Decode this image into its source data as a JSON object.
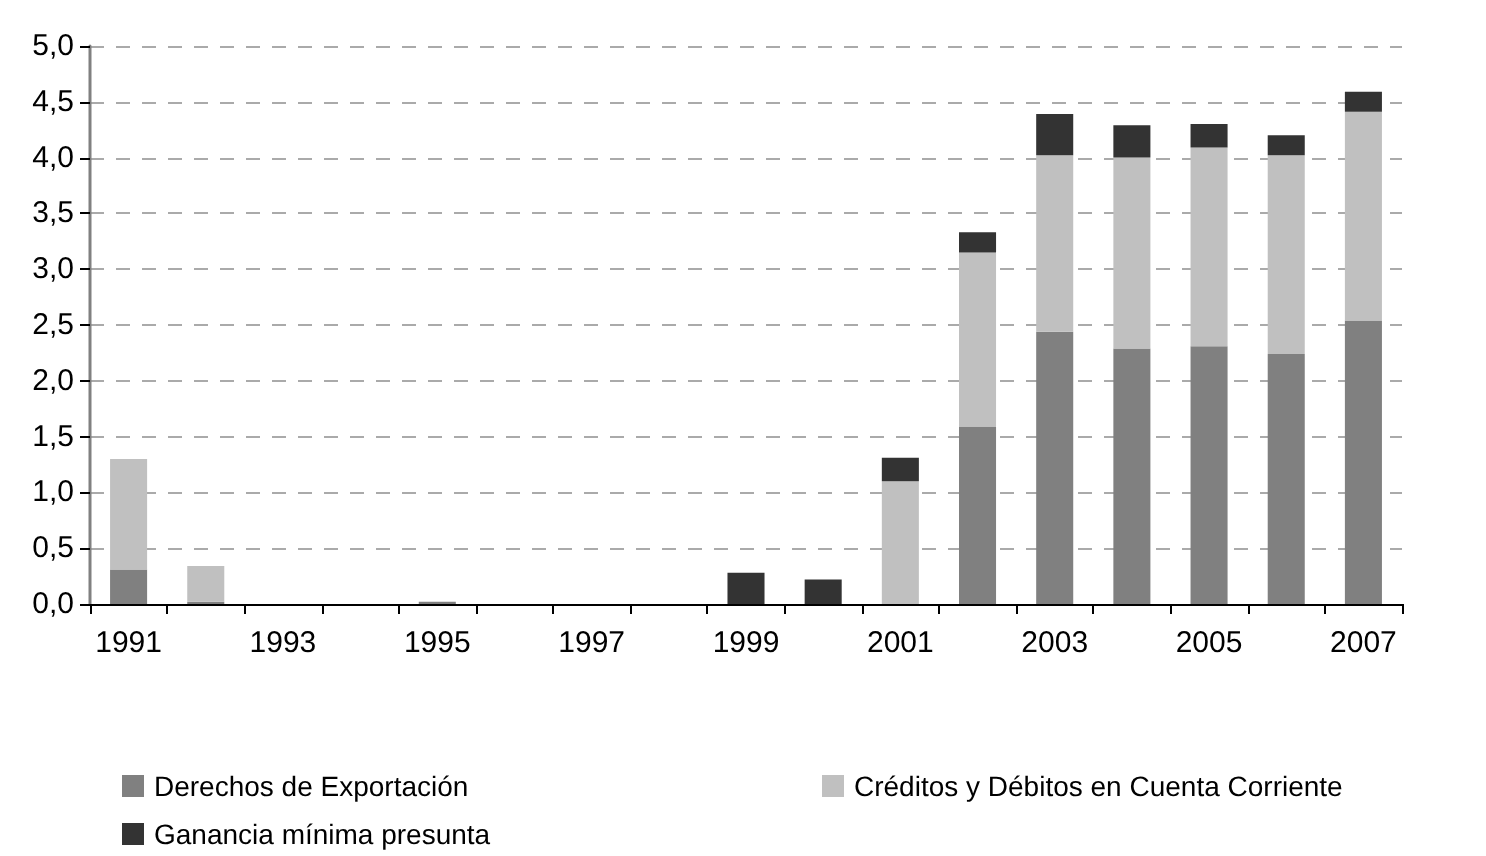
{
  "chart_data": {
    "type": "bar",
    "stacked": true,
    "categories": [
      "1991",
      null,
      "1993",
      null,
      "1995",
      null,
      "1997",
      null,
      "1999",
      null,
      "2001",
      null,
      "2003",
      null,
      "2005",
      null,
      "2007"
    ],
    "series": [
      {
        "name": "Derechos de Exportación",
        "color": "#808080",
        "values": [
          0.31,
          0.02,
          0,
          0,
          0.02,
          0,
          0,
          0,
          0,
          0,
          0,
          1.59,
          2.44,
          2.29,
          2.31,
          2.24,
          2.54
        ]
      },
      {
        "name": "Créditos y Débitos en Cuenta Corriente",
        "color": "#c0c0c0",
        "values": [
          0.99,
          0.32,
          0,
          0,
          0,
          0,
          0,
          0,
          0,
          0,
          1.1,
          1.56,
          1.58,
          1.71,
          1.78,
          1.78,
          1.87
        ]
      },
      {
        "name": "Ganancia mínima presunta",
        "color": "#333333",
        "values": [
          0,
          0,
          0,
          0,
          0,
          0,
          0,
          0,
          0.28,
          0.22,
          0.21,
          0.18,
          0.37,
          0.29,
          0.21,
          0.18,
          0.18
        ]
      }
    ],
    "ylim": [
      0,
      5
    ],
    "yticks": [
      {
        "value": 0,
        "label": "0,0"
      },
      {
        "value": 0.5,
        "label": "0,5"
      },
      {
        "value": 1,
        "label": "1,0"
      },
      {
        "value": 1.5,
        "label": "1,5"
      },
      {
        "value": 2,
        "label": "2,0"
      },
      {
        "value": 2.5,
        "label": "2,5"
      },
      {
        "value": 3,
        "label": "3,0"
      },
      {
        "value": 3.5,
        "label": "3,5"
      },
      {
        "value": 4,
        "label": "4,0"
      },
      {
        "value": 4.5,
        "label": "4,5"
      },
      {
        "value": 5,
        "label": "5,0"
      }
    ],
    "grid": "y",
    "legend": "bottom"
  }
}
